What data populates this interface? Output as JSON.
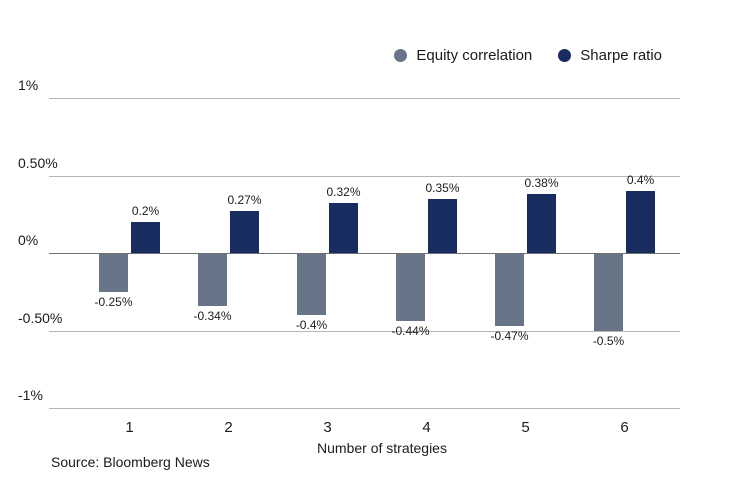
{
  "source_note": "Source: Bloomberg News",
  "colors": {
    "equity_correlation": "#687589",
    "sharpe_ratio": "#192C5F",
    "gridline": "#b5b5b5",
    "zero_line": "#6f6f6f",
    "text": "#1b1b1b"
  },
  "chart_data": {
    "type": "bar",
    "title": "",
    "xlabel": "Number of strategies",
    "ylabel": "",
    "ylim": [
      -1,
      1
    ],
    "grid": true,
    "legend_position": "top-right",
    "categories": [
      "1",
      "2",
      "3",
      "4",
      "5",
      "6"
    ],
    "y_ticks": [
      {
        "label": "1%",
        "value": 1
      },
      {
        "label": "0.50%",
        "value": 0.5
      },
      {
        "label": "0%",
        "value": 0
      },
      {
        "label": "-0.50%",
        "value": -0.5
      },
      {
        "label": "-1%",
        "value": -1
      }
    ],
    "series": [
      {
        "name": "Equity correlation",
        "color": "#687589",
        "values": [
          -0.25,
          -0.34,
          -0.4,
          -0.44,
          -0.47,
          -0.5
        ],
        "labels": [
          "-0.25%",
          "-0.34%",
          "-0.4%",
          "-0.44%",
          "-0.47%",
          "-0.5%"
        ]
      },
      {
        "name": "Sharpe ratio",
        "color": "#192C5F",
        "values": [
          0.2,
          0.27,
          0.32,
          0.35,
          0.38,
          0.4
        ],
        "labels": [
          "0.2%",
          "0.27%",
          "0.32%",
          "0.35%",
          "0.38%",
          "0.4%"
        ]
      }
    ]
  }
}
